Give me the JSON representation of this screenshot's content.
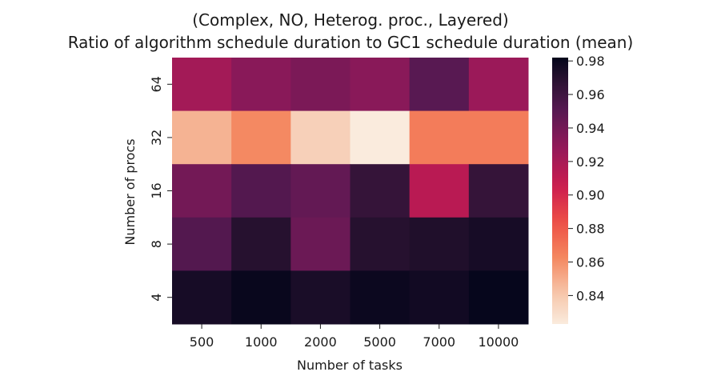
{
  "chart_data": {
    "type": "heatmap",
    "title_line1": "(Complex, NO, Heterog. proc., Layered)",
    "title_line2": "Ratio of algorithm schedule duration to GC1 schedule duration (mean)",
    "xlabel": "Number of tasks",
    "ylabel": "Number of procs",
    "x_categories": [
      "500",
      "1000",
      "2000",
      "5000",
      "7000",
      "10000"
    ],
    "y_categories": [
      "64",
      "32",
      "16",
      "8",
      "4"
    ],
    "values": [
      [
        0.922,
        0.932,
        0.937,
        0.932,
        0.95,
        0.925
      ],
      [
        0.848,
        0.862,
        0.836,
        0.823,
        0.867,
        0.867
      ],
      [
        0.94,
        0.952,
        0.946,
        0.964,
        0.913,
        0.964
      ],
      [
        0.952,
        0.97,
        0.943,
        0.97,
        0.972,
        0.975
      ],
      [
        0.975,
        0.98,
        0.974,
        0.979,
        0.977,
        0.981
      ]
    ],
    "colorbar": {
      "range": [
        0.823,
        0.982
      ],
      "ticks": [
        "0.84",
        "0.86",
        "0.88",
        "0.90",
        "0.92",
        "0.94",
        "0.96",
        "0.98"
      ]
    },
    "colormap": "rocket_r",
    "legend": "colorbar-right",
    "grid": false
  }
}
